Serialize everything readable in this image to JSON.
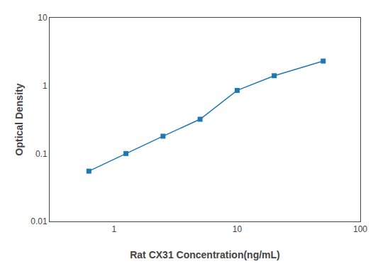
{
  "chart_data": {
    "type": "line",
    "x": [
      0.625,
      1.25,
      2.5,
      5,
      10,
      20,
      50
    ],
    "values": [
      0.055,
      0.1,
      0.18,
      0.32,
      0.85,
      1.4,
      2.3
    ],
    "xlabel": "Rat CX31 Concentration(ng/mL)",
    "ylabel": "Optical Density",
    "log": true,
    "xlim": [
      0.3,
      100
    ],
    "ylim": [
      0.01,
      10
    ],
    "xticks": [
      1,
      10,
      100
    ],
    "yticks": [
      0.01,
      0.1,
      1,
      10
    ],
    "marker": "square",
    "line_style": "solid",
    "grid": false
  }
}
